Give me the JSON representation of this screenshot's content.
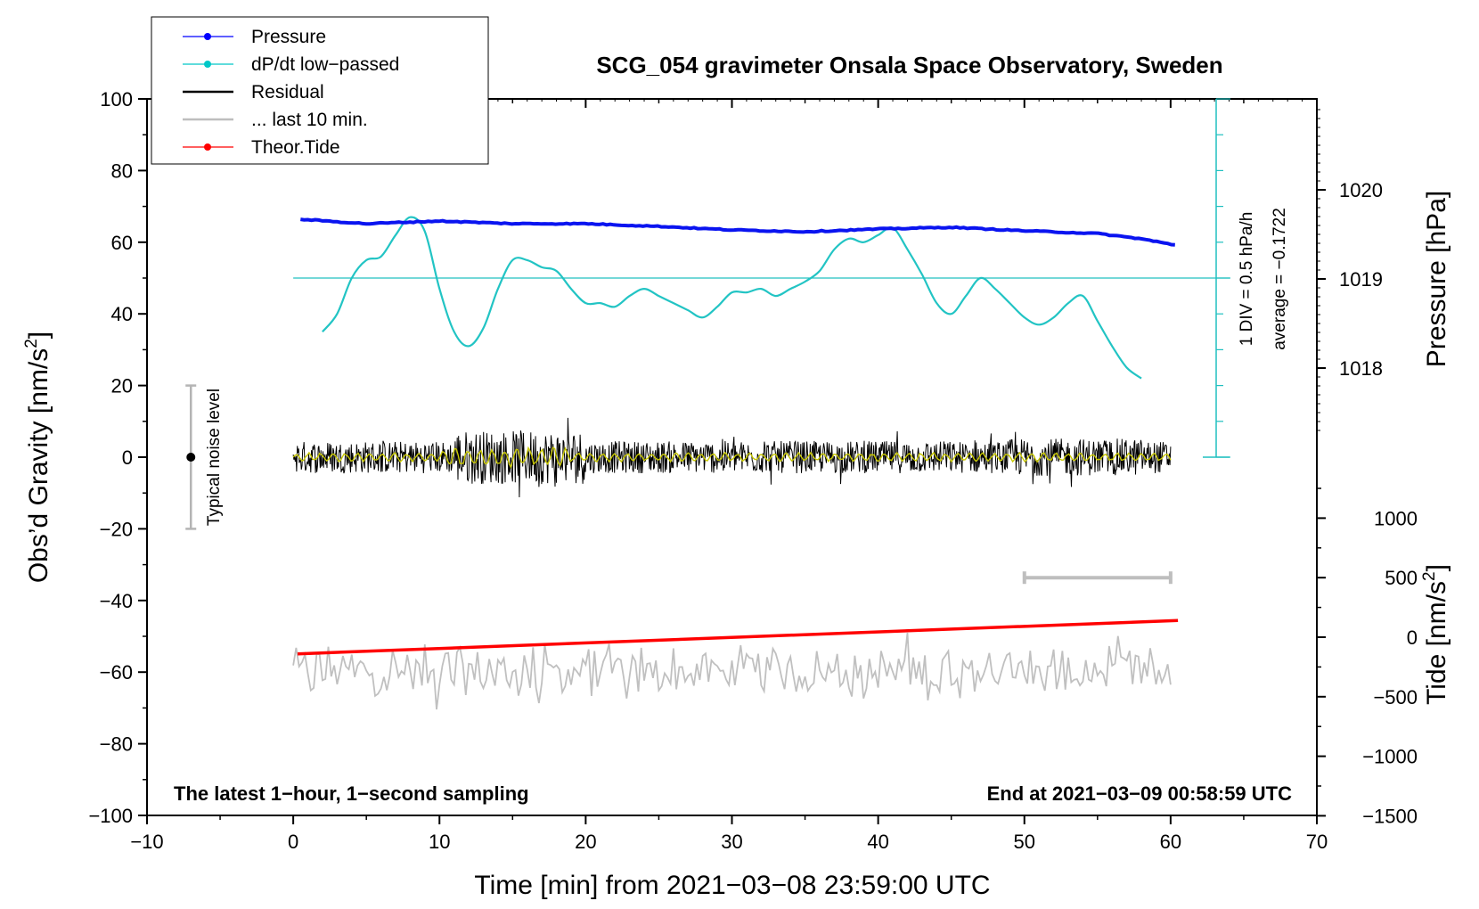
{
  "chart_data": {
    "type": "line",
    "title": "SCG_054 gravimeter Onsala Space Observatory, Sweden",
    "xlabel": "Time [min] from 2021−03−08 23:59:00 UTC",
    "ylabel_left": "Obs’d Gravity [nm/s",
    "ylabel_left_sup": "2",
    "ylabel_left_close": "]",
    "ylabel_right_pressure": "Pressure [hPa]",
    "ylabel_right_tide": "Tide [nm/s",
    "ylabel_right_tide_sup": "2",
    "ylabel_right_tide_close": "]",
    "xlim": [
      -10,
      70
    ],
    "ylim": [
      -100,
      100
    ],
    "x_ticks": [
      -10,
      0,
      10,
      20,
      30,
      40,
      50,
      60,
      70
    ],
    "x_tick_labels": [
      "−10",
      "0",
      "10",
      "20",
      "30",
      "40",
      "50",
      "60",
      "70"
    ],
    "y_ticks": [
      -100,
      -80,
      -60,
      -40,
      -20,
      0,
      20,
      40,
      60,
      80,
      100
    ],
    "y_tick_labels": [
      "−100",
      "−80",
      "−60",
      "−40",
      "−20",
      "0",
      "20",
      "40",
      "60",
      "80",
      "100"
    ],
    "pressure_ticks": [
      1018,
      1019,
      1020
    ],
    "pressure_tick_labels": [
      "1018",
      "1019",
      "1020"
    ],
    "tide_ticks": [
      -1500,
      -1000,
      -500,
      0,
      500,
      1000
    ],
    "tide_tick_labels": [
      "−1500",
      "−1000",
      "−500",
      "0",
      "500",
      "1000"
    ],
    "legend": {
      "position": "top-left",
      "entries": [
        {
          "label": "Pressure",
          "color": "#0000ff",
          "marker": true
        },
        {
          "label": "dP/dt low−passed",
          "color": "#00c8c8",
          "marker": true
        },
        {
          "label": "Residual",
          "color": "#000000",
          "marker": false
        },
        {
          "label": "... last 10 min.",
          "color": "#bebebe",
          "marker": false
        },
        {
          "label": "Theor.Tide",
          "color": "#ff0000",
          "marker": true
        }
      ]
    },
    "annotations": {
      "noise_label": "Typical noise level",
      "noise_level": [
        -20,
        20
      ],
      "dpdt_scale": "1 DIV = 0.5 hPa/h",
      "dpdt_average": "average = −0.1722",
      "footer_left": "The latest 1−hour, 1−second sampling",
      "footer_right": "End at 2021−03−09 00:58:59 UTC"
    },
    "series": [
      {
        "name": "Pressure",
        "axis": "pressure_hPa",
        "color": "#0000ff",
        "x": [
          0.5,
          5,
          10,
          15,
          20,
          25,
          30,
          35,
          40,
          45,
          50,
          55,
          58,
          60.3
        ],
        "values": [
          1019.67,
          1019.62,
          1019.65,
          1019.62,
          1019.62,
          1019.59,
          1019.55,
          1019.53,
          1019.56,
          1019.58,
          1019.54,
          1019.51,
          1019.45,
          1019.38
        ]
      },
      {
        "name": "dP/dt low−passed",
        "axis": "gravity_scaled",
        "color": "#00c8c8",
        "x": [
          2,
          3,
          4,
          5,
          6,
          7,
          8,
          9,
          10,
          11,
          12,
          13,
          14,
          15,
          16,
          17,
          18,
          19,
          20,
          21,
          22,
          23,
          24,
          25,
          26,
          27,
          28,
          29,
          30,
          31,
          32,
          33,
          34,
          35,
          36,
          37,
          38,
          39,
          40,
          41,
          42,
          43,
          44,
          45,
          46,
          47,
          48,
          49,
          50,
          51,
          52,
          53,
          54,
          55,
          56,
          57,
          58
        ],
        "values": [
          35,
          40,
          50,
          55,
          56,
          62,
          67,
          63,
          47,
          35,
          31,
          36,
          47,
          55,
          55,
          53,
          52,
          47,
          43,
          43,
          42,
          45,
          47,
          45,
          43,
          41,
          39,
          42,
          46,
          46,
          47,
          45,
          47,
          49,
          52,
          58,
          61,
          60,
          62,
          64,
          58,
          51,
          43,
          40,
          45,
          50,
          47,
          43,
          39,
          37,
          39,
          43,
          45,
          38,
          31,
          25,
          22
        ]
      },
      {
        "name": "Residual",
        "axis": "gravity",
        "color": "#000000",
        "x_range": [
          0,
          60
        ],
        "amplitude": [
          -15,
          16
        ]
      },
      {
        "name": "... last 10 min.",
        "axis": "gravity_offset",
        "color": "#bebebe",
        "x_range": [
          0,
          60
        ],
        "center": -60,
        "amplitude": [
          -71,
          -49
        ]
      },
      {
        "name": "Theor.Tide",
        "axis": "tide_nm_s2",
        "color": "#ff0000",
        "x": [
          0.3,
          60.5
        ],
        "values": [
          -140,
          140
        ]
      }
    ]
  }
}
